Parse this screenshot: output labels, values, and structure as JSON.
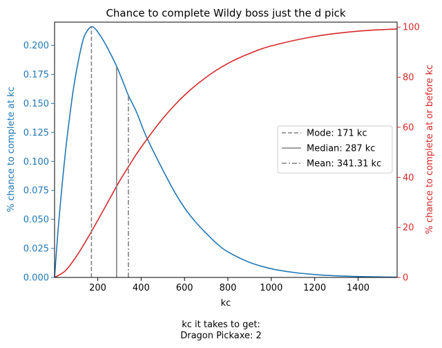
{
  "chart_data": {
    "type": "line",
    "title": "Chance to complete Wildy boss just the d pick",
    "xlabel": "kc",
    "ylabel_left": "% chance to complete at kc",
    "ylabel_right": "% chance to complete at or before kc",
    "xlim": [
      1,
      1580
    ],
    "ylim_left": [
      0,
      0.22
    ],
    "ylim_right": [
      0,
      102
    ],
    "x_ticks": [
      200,
      400,
      600,
      800,
      1000,
      1200,
      1400
    ],
    "y_ticks_left": [
      0.0,
      0.025,
      0.05,
      0.075,
      0.1,
      0.125,
      0.15,
      0.175,
      0.2
    ],
    "y_ticks_right": [
      0,
      20,
      40,
      60,
      80,
      100
    ],
    "colors": {
      "left_axis": "#1f77b4",
      "right_axis": "#d62728",
      "markers": "#808080"
    },
    "series": [
      {
        "axis": "left",
        "color": "#1f77b4",
        "x": [
          1,
          20,
          50,
          80,
          100,
          130,
          150,
          171,
          190,
          220,
          250,
          287,
          320,
          341,
          380,
          420,
          480,
          550,
          600,
          650,
          700,
          750,
          800,
          900,
          1000,
          1100,
          1200,
          1300,
          1400,
          1500,
          1580
        ],
        "y": [
          0.0,
          0.047,
          0.106,
          0.152,
          0.176,
          0.203,
          0.212,
          0.216,
          0.214,
          0.206,
          0.196,
          0.182,
          0.167,
          0.157,
          0.142,
          0.123,
          0.1,
          0.075,
          0.06,
          0.048,
          0.038,
          0.029,
          0.022,
          0.013,
          0.0075,
          0.0044,
          0.0025,
          0.0014,
          0.0008,
          0.0004,
          0.0002
        ]
      },
      {
        "axis": "right",
        "color": "#d62728",
        "x": [
          1,
          50,
          100,
          150,
          200,
          250,
          300,
          350,
          400,
          500,
          600,
          700,
          800,
          900,
          1000,
          1200,
          1400,
          1580
        ],
        "y": [
          0.0,
          2.6,
          8.2,
          15.2,
          22.8,
          30.6,
          38.4,
          45.4,
          52.0,
          63.5,
          72.8,
          80.0,
          85.5,
          89.5,
          92.5,
          96.3,
          98.4,
          99.3
        ]
      }
    ],
    "markers": [
      {
        "label": "Mode: 171 kc",
        "x": 171,
        "y": 0.216,
        "style": "dashed"
      },
      {
        "label": "Median: 287 kc",
        "x": 287,
        "y": 0.182,
        "style": "solid"
      },
      {
        "label": "Mean: 341.31 kc",
        "x": 341.31,
        "y": 0.157,
        "style": "dashdot"
      }
    ],
    "legend_position": "center-right",
    "caption_line1": "kc it takes to get:",
    "caption_line2": "Dragon Pickaxe: 2"
  }
}
